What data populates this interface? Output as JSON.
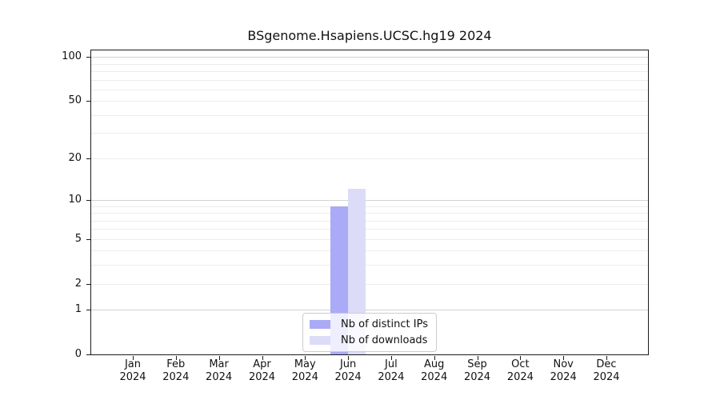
{
  "chart_data": {
    "type": "bar",
    "title": "BSgenome.Hsapiens.UCSC.hg19 2024",
    "categories": [
      "Jan",
      "Feb",
      "Mar",
      "Apr",
      "May",
      "Jun",
      "Jul",
      "Aug",
      "Sep",
      "Oct",
      "Nov",
      "Dec"
    ],
    "category_year": "2024",
    "series": [
      {
        "name": "Nb of distinct IPs",
        "color": "#aaaaf7",
        "values": [
          0,
          0,
          0,
          0,
          0,
          9,
          0,
          0,
          0,
          0,
          0,
          0
        ]
      },
      {
        "name": "Nb of downloads",
        "color": "#dcdcf9",
        "values": [
          0,
          0,
          0,
          0,
          0,
          12,
          0,
          0,
          0,
          0,
          0,
          0
        ]
      }
    ],
    "xlabel": "",
    "ylabel": "",
    "yscale": "log1p",
    "ylim": [
      0,
      111
    ],
    "yticks": [
      0,
      1,
      2,
      5,
      10,
      20,
      50,
      100
    ],
    "gridlines": {
      "major": [
        1,
        10,
        100
      ],
      "minor": [
        2,
        3,
        4,
        5,
        6,
        7,
        8,
        9,
        20,
        30,
        40,
        50,
        60,
        70,
        80,
        90
      ]
    },
    "grid": true,
    "legend_position": "lower center"
  }
}
